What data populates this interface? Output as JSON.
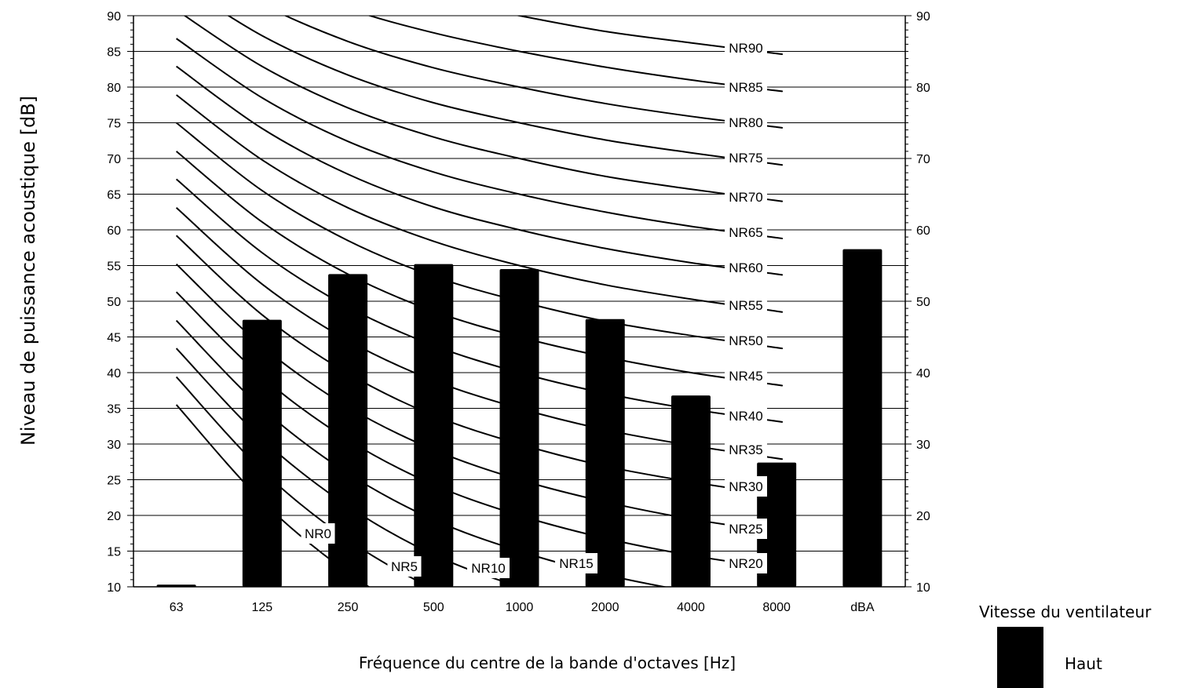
{
  "chart_data": {
    "type": "bar",
    "xlabel": "Fréquence du centre de la bande d'octaves [Hz]",
    "ylabel": "Niveau de puissance acoustique [dB]",
    "categories": [
      "63",
      "125",
      "250",
      "500",
      "1000",
      "2000",
      "4000",
      "8000",
      "dBA"
    ],
    "series": [
      {
        "name": "Haut",
        "color": "#000000",
        "values": [
          10.3,
          47.4,
          53.8,
          55.2,
          54.5,
          47.5,
          36.8,
          27.4,
          57.3
        ]
      }
    ],
    "left_axis": {
      "ylim": [
        10,
        90
      ],
      "ticks": [
        10,
        15,
        20,
        25,
        30,
        35,
        40,
        45,
        50,
        55,
        60,
        65,
        70,
        75,
        80,
        85,
        90
      ]
    },
    "right_axis": {
      "ylim": [
        10,
        90
      ],
      "ticks": [
        10,
        20,
        30,
        40,
        50,
        60,
        70,
        80,
        90
      ]
    },
    "grid": true,
    "nr_curves": {
      "labels": [
        "NR0",
        "NR5",
        "NR10",
        "NR15",
        "NR20",
        "NR25",
        "NR30",
        "NR35",
        "NR40",
        "NR45",
        "NR50",
        "NR55",
        "NR60",
        "NR65",
        "NR70",
        "NR75",
        "NR80",
        "NR85",
        "NR90"
      ],
      "levels": [
        [
          35.5,
          22.0,
          12.0,
          4.8,
          0.0,
          -3.5,
          -6.1,
          -8.0
        ],
        [
          39.4,
          26.3,
          16.6,
          9.7,
          5.0,
          1.6,
          -1.0,
          -2.8
        ],
        [
          43.4,
          30.7,
          21.3,
          14.5,
          10.0,
          6.6,
          4.2,
          2.3
        ],
        [
          47.3,
          35.0,
          25.9,
          19.4,
          15.0,
          11.7,
          9.3,
          7.4
        ],
        [
          51.3,
          39.4,
          30.6,
          24.3,
          20.0,
          16.8,
          14.4,
          12.6
        ],
        [
          55.2,
          43.7,
          35.2,
          29.2,
          25.0,
          21.9,
          19.5,
          17.7
        ],
        [
          59.2,
          48.1,
          39.9,
          34.0,
          30.0,
          26.9,
          24.7,
          22.9
        ],
        [
          63.1,
          52.4,
          44.5,
          38.9,
          35.0,
          32.0,
          29.8,
          28.0
        ],
        [
          67.1,
          56.8,
          49.2,
          43.8,
          40.0,
          37.1,
          34.9,
          33.2
        ],
        [
          71.0,
          61.1,
          53.8,
          48.6,
          45.0,
          42.2,
          40.0,
          38.3
        ],
        [
          75.0,
          65.5,
          58.5,
          53.5,
          50.0,
          47.2,
          45.2,
          43.5
        ],
        [
          78.9,
          69.8,
          63.1,
          58.4,
          55.0,
          52.3,
          50.3,
          48.6
        ],
        [
          82.9,
          74.2,
          67.8,
          63.2,
          60.0,
          57.4,
          55.4,
          53.8
        ],
        [
          86.8,
          78.5,
          72.4,
          68.1,
          65.0,
          62.5,
          60.5,
          58.9
        ],
        [
          90.8,
          82.9,
          77.1,
          73.0,
          70.0,
          67.5,
          65.7,
          64.1
        ],
        [
          94.7,
          87.2,
          81.7,
          77.8,
          75.0,
          72.6,
          70.8,
          69.2
        ],
        [
          98.7,
          91.6,
          86.4,
          82.7,
          80.0,
          77.7,
          75.9,
          74.4
        ],
        [
          102.6,
          95.9,
          91.0,
          87.6,
          85.0,
          82.8,
          81.0,
          79.5
        ],
        [
          106.6,
          100.3,
          95.7,
          92.4,
          90.0,
          87.8,
          86.2,
          84.7
        ]
      ]
    }
  },
  "legend": {
    "title": "Vitesse du ventilateur",
    "items": [
      {
        "label": "Haut",
        "color": "#000000"
      }
    ]
  }
}
